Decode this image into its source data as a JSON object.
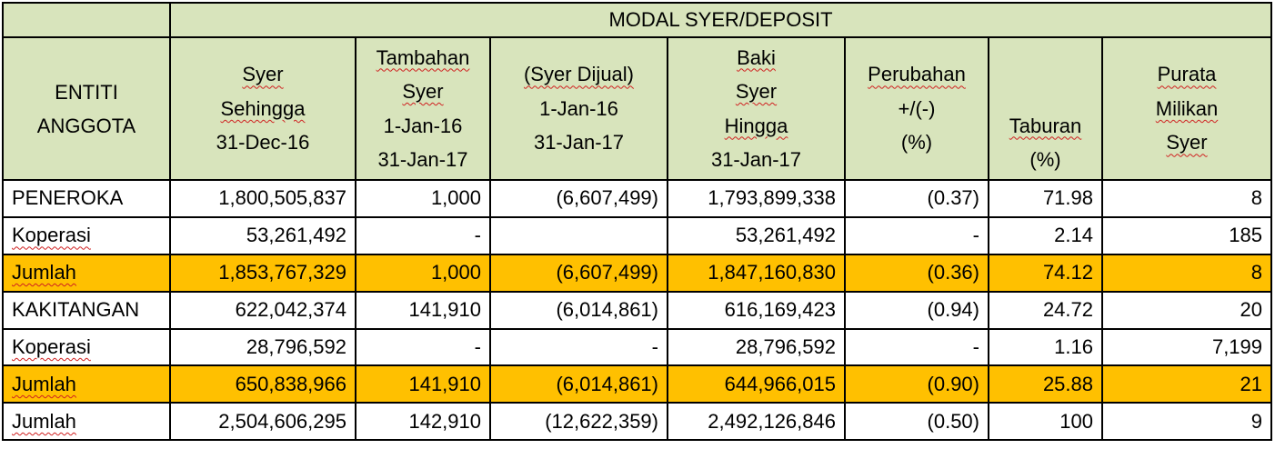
{
  "table": {
    "group_header": "MODAL SYER/DEPOSIT",
    "header_lines": [
      [
        "ENTITI",
        "ANGGOTA"
      ],
      [
        "Syer",
        "Sehingga",
        "31-Dec-16"
      ],
      [
        "Tambahan",
        "Syer",
        "1-Jan-16",
        "31-Jan-17"
      ],
      [
        "(Syer Dijual)",
        "1-Jan-16",
        "31-Jan-17"
      ],
      [
        "Baki",
        "Syer",
        "Hingga",
        "31-Jan-17"
      ],
      [
        "Perubahan",
        "+/(-)",
        "(%)"
      ],
      [
        "Taburan",
        "(%)"
      ],
      [
        "Purata",
        "Milikan",
        "Syer"
      ]
    ],
    "rows": [
      {
        "style": "plain",
        "label": "PENEROKA",
        "values": [
          "1,800,505,837",
          "1,000",
          "(6,607,499)",
          "1,793,899,338",
          "(0.37)",
          "71.98",
          "8"
        ]
      },
      {
        "style": "plain",
        "label": "Koperasi",
        "values": [
          "53,261,492",
          "-",
          "",
          "53,261,492",
          "-",
          "2.14",
          "185"
        ]
      },
      {
        "style": "total",
        "label": "Jumlah",
        "values": [
          "1,853,767,329",
          "1,000",
          "(6,607,499)",
          "1,847,160,830",
          "(0.36)",
          "74.12",
          "8"
        ]
      },
      {
        "style": "plain",
        "label": "KAKITANGAN",
        "values": [
          "622,042,374",
          "141,910",
          "(6,014,861)",
          "616,169,423",
          "(0.94)",
          "24.72",
          "20"
        ]
      },
      {
        "style": "plain",
        "label": "Koperasi",
        "values": [
          "28,796,592",
          "-",
          "-",
          "28,796,592",
          "-",
          "1.16",
          "7,199"
        ]
      },
      {
        "style": "total",
        "label": "Jumlah",
        "values": [
          "650,838,966",
          "141,910",
          "(6,014,861)",
          "644,966,015",
          "(0.90)",
          "25.88",
          "21"
        ]
      },
      {
        "style": "plain",
        "label": "Jumlah",
        "values": [
          "2,504,606,295",
          "142,910",
          "(12,622,359)",
          "2,492,126,846",
          "(0.50)",
          "100",
          "9"
        ]
      }
    ],
    "colors": {
      "header_fill": "#d8e4bc",
      "total_row_fill": "#ffc000",
      "border": "#000000",
      "spellcheck_underline": "#d02020"
    }
  }
}
